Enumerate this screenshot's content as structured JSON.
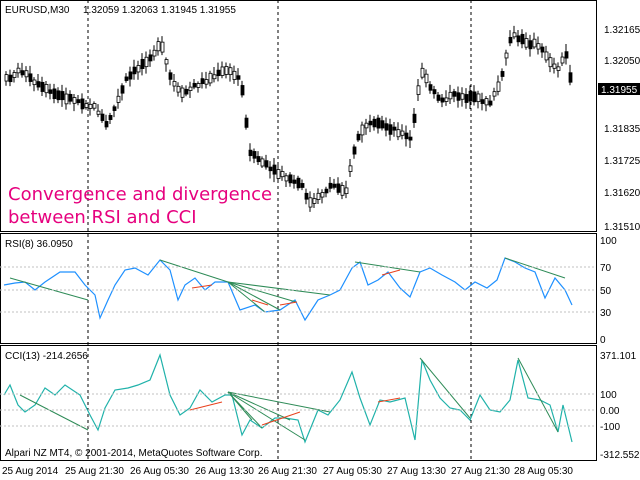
{
  "header": {
    "symbol": "EURUSD,M30",
    "ohlc": "1.32059 1.32063 1.31945 1.31955"
  },
  "annotation": {
    "line1": "Convergence and divergence",
    "line2": "between RSI and CCI"
  },
  "price_axis": {
    "ticks": [
      "1.32165",
      "1.32050",
      "1.31835",
      "1.31725",
      "1.31620",
      "1.31510"
    ],
    "current_price": "1.31955"
  },
  "rsi": {
    "label": "RSI(8) 36.0950",
    "levels": [
      "100",
      "70",
      "50",
      "30",
      "0"
    ]
  },
  "cci": {
    "label": "CCI(13) -214.2656",
    "levels": [
      "371.101",
      "100",
      "0.00",
      "-100",
      "-312.552"
    ]
  },
  "copyright": "Alpari NZ MT4, © 2001-2014, MetaQuotes Software Corp.",
  "time_axis": {
    "labels": [
      "25 Aug 2014",
      "25 Aug 21:30",
      "26 Aug 05:30",
      "26 Aug 13:30",
      "26 Aug 21:30",
      "27 Aug 05:30",
      "27 Aug 13:30",
      "27 Aug 21:30",
      "28 Aug 05:30"
    ]
  },
  "colors": {
    "candles": "#000000",
    "rsi_line": "#1e90ff",
    "cci_line": "#20b2aa",
    "divergence_green": "#2e8b57",
    "divergence_red": "#e8401c",
    "annotation": "#e6007e"
  }
}
